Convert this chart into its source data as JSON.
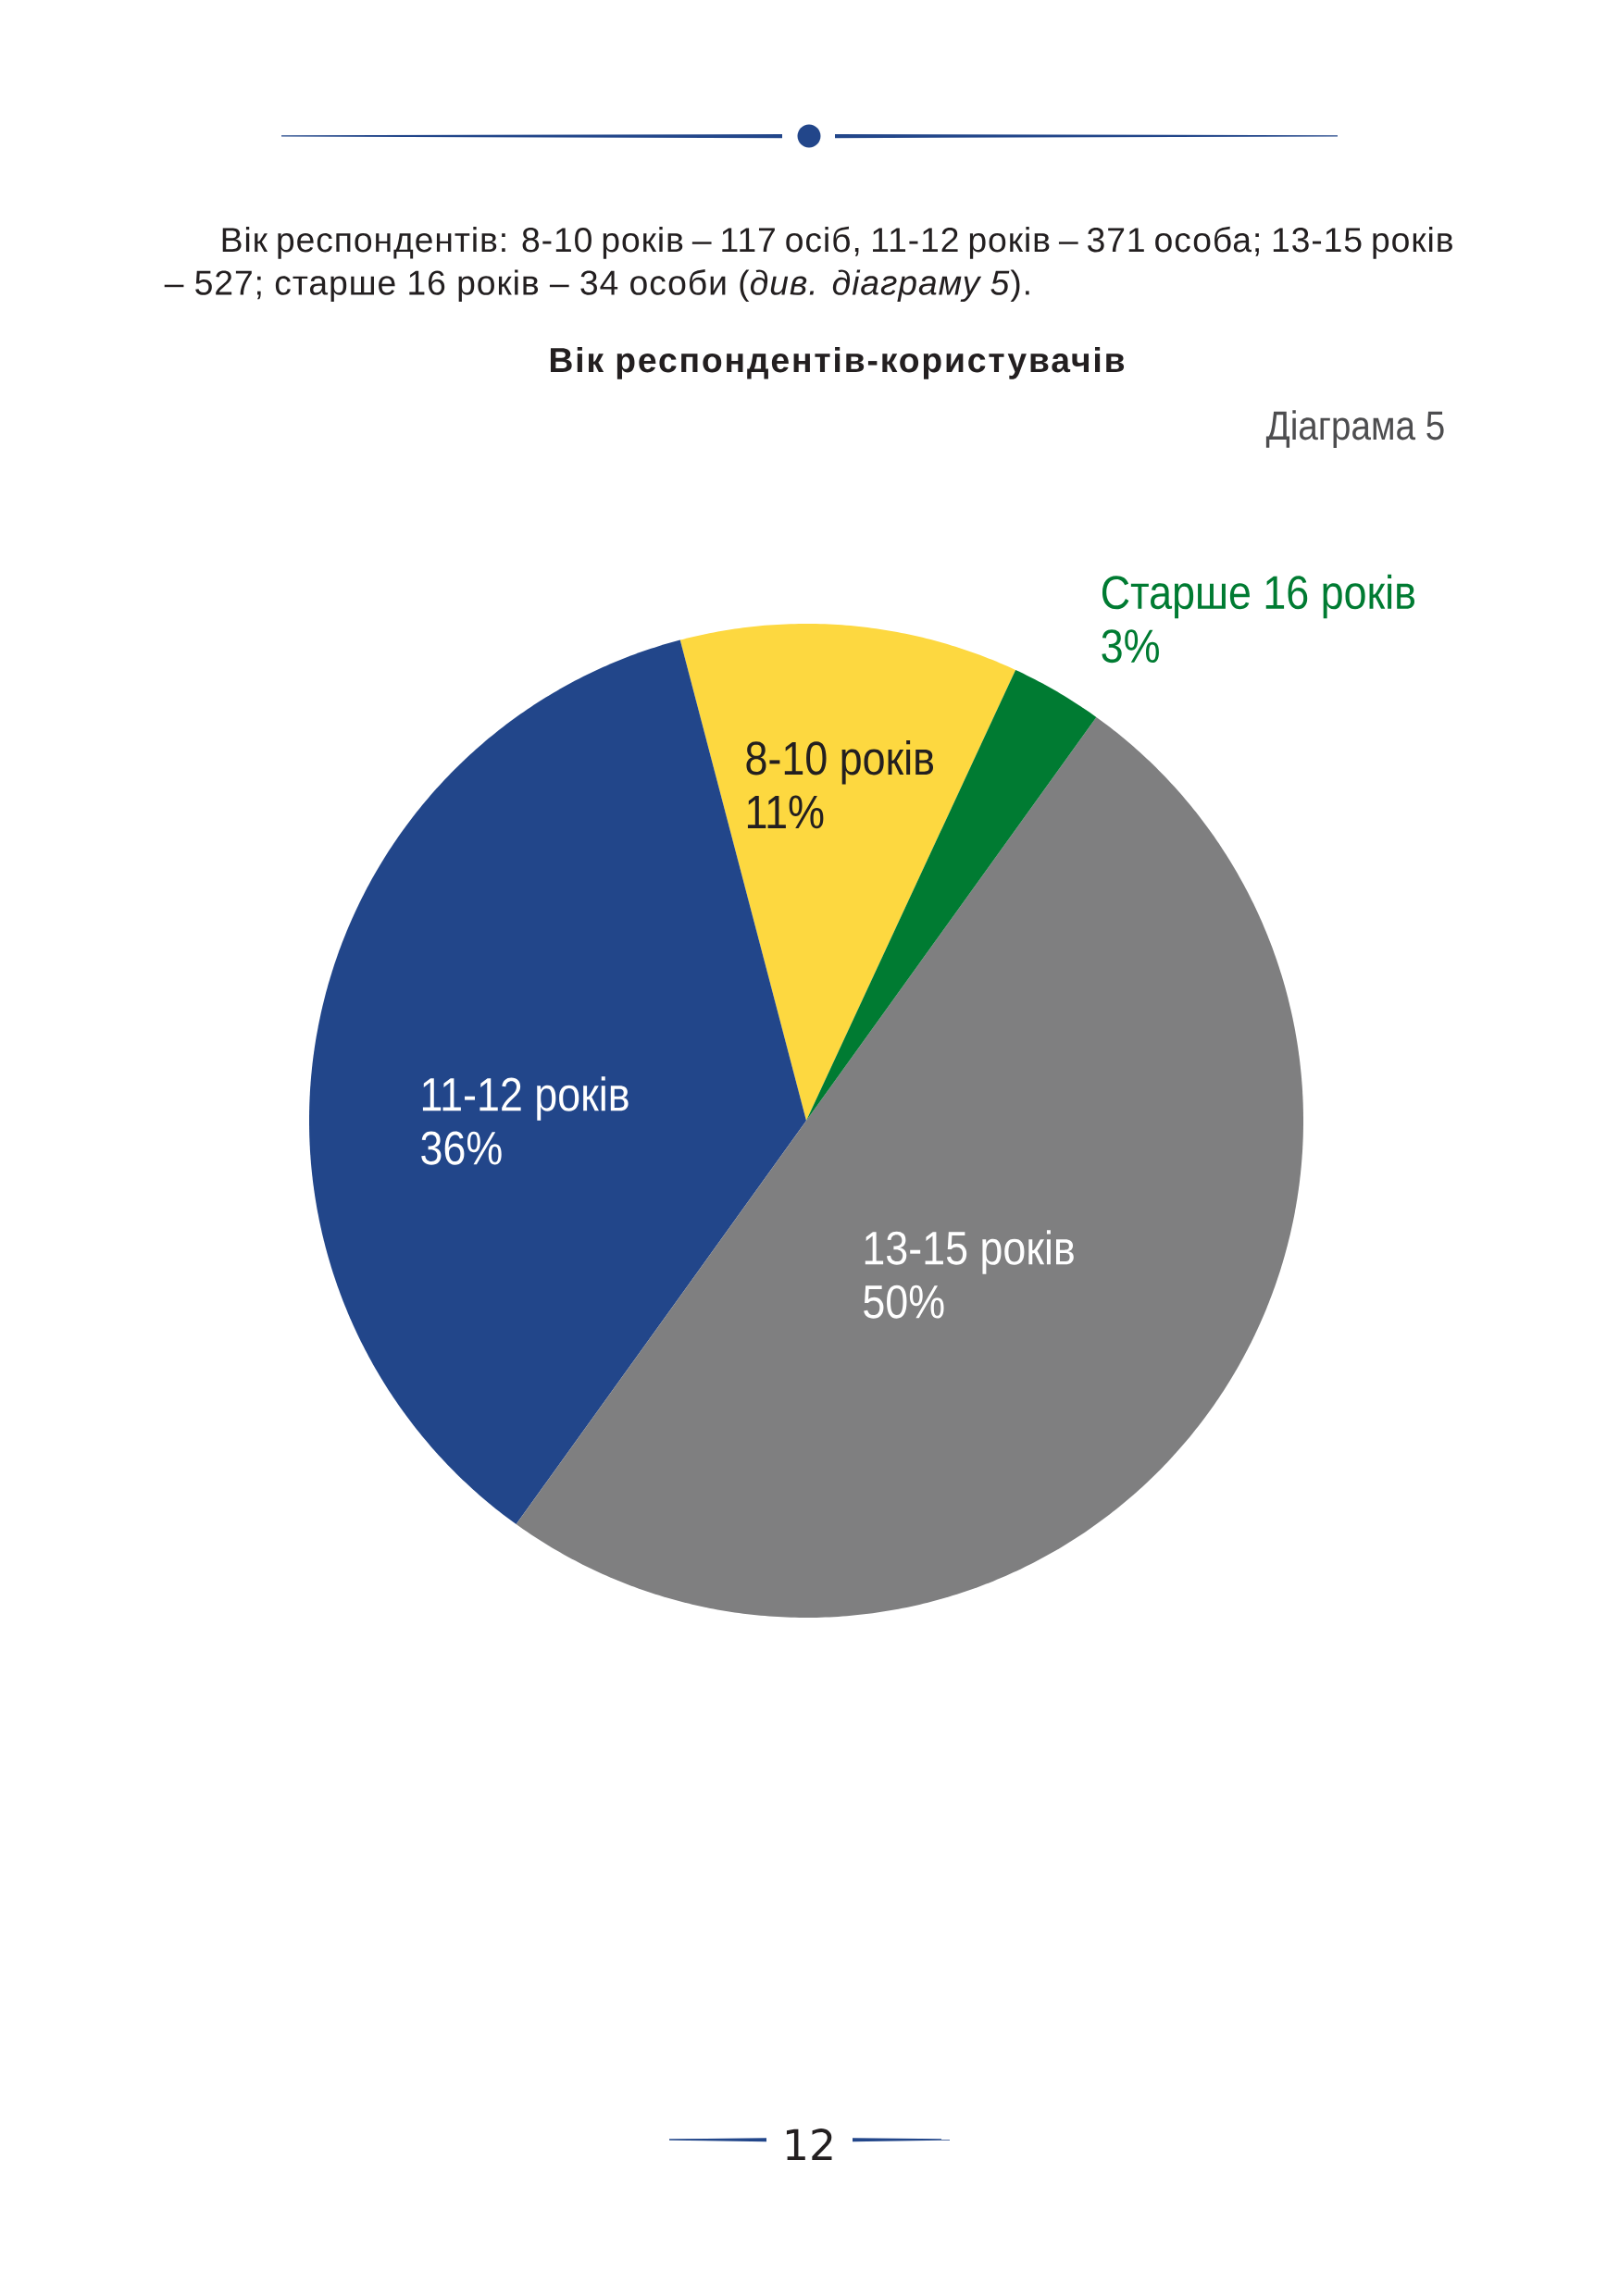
{
  "chart_data": {
    "type": "pie",
    "title": "Вік респондентів-користувачів",
    "categories": [
      "8-10 років",
      "11-12 років",
      "13-15 років",
      "Старше 16 років"
    ],
    "values": [
      11,
      36,
      50,
      3
    ],
    "colors": [
      "#fdd840",
      "#22468a",
      "#7f7f80",
      "#007b32"
    ],
    "value_labels": [
      "11%",
      "36%",
      "50%",
      "3%"
    ],
    "annotations": [
      "Вік респондентів: 8-10 років – 117 осіб, 11-12 років – 371 особа; 13-15 років – 527; старше 16 років – 34 особи (*див. діаграму 5*).",
      "Діаграма 5",
      "12"
    ]
  }
}
